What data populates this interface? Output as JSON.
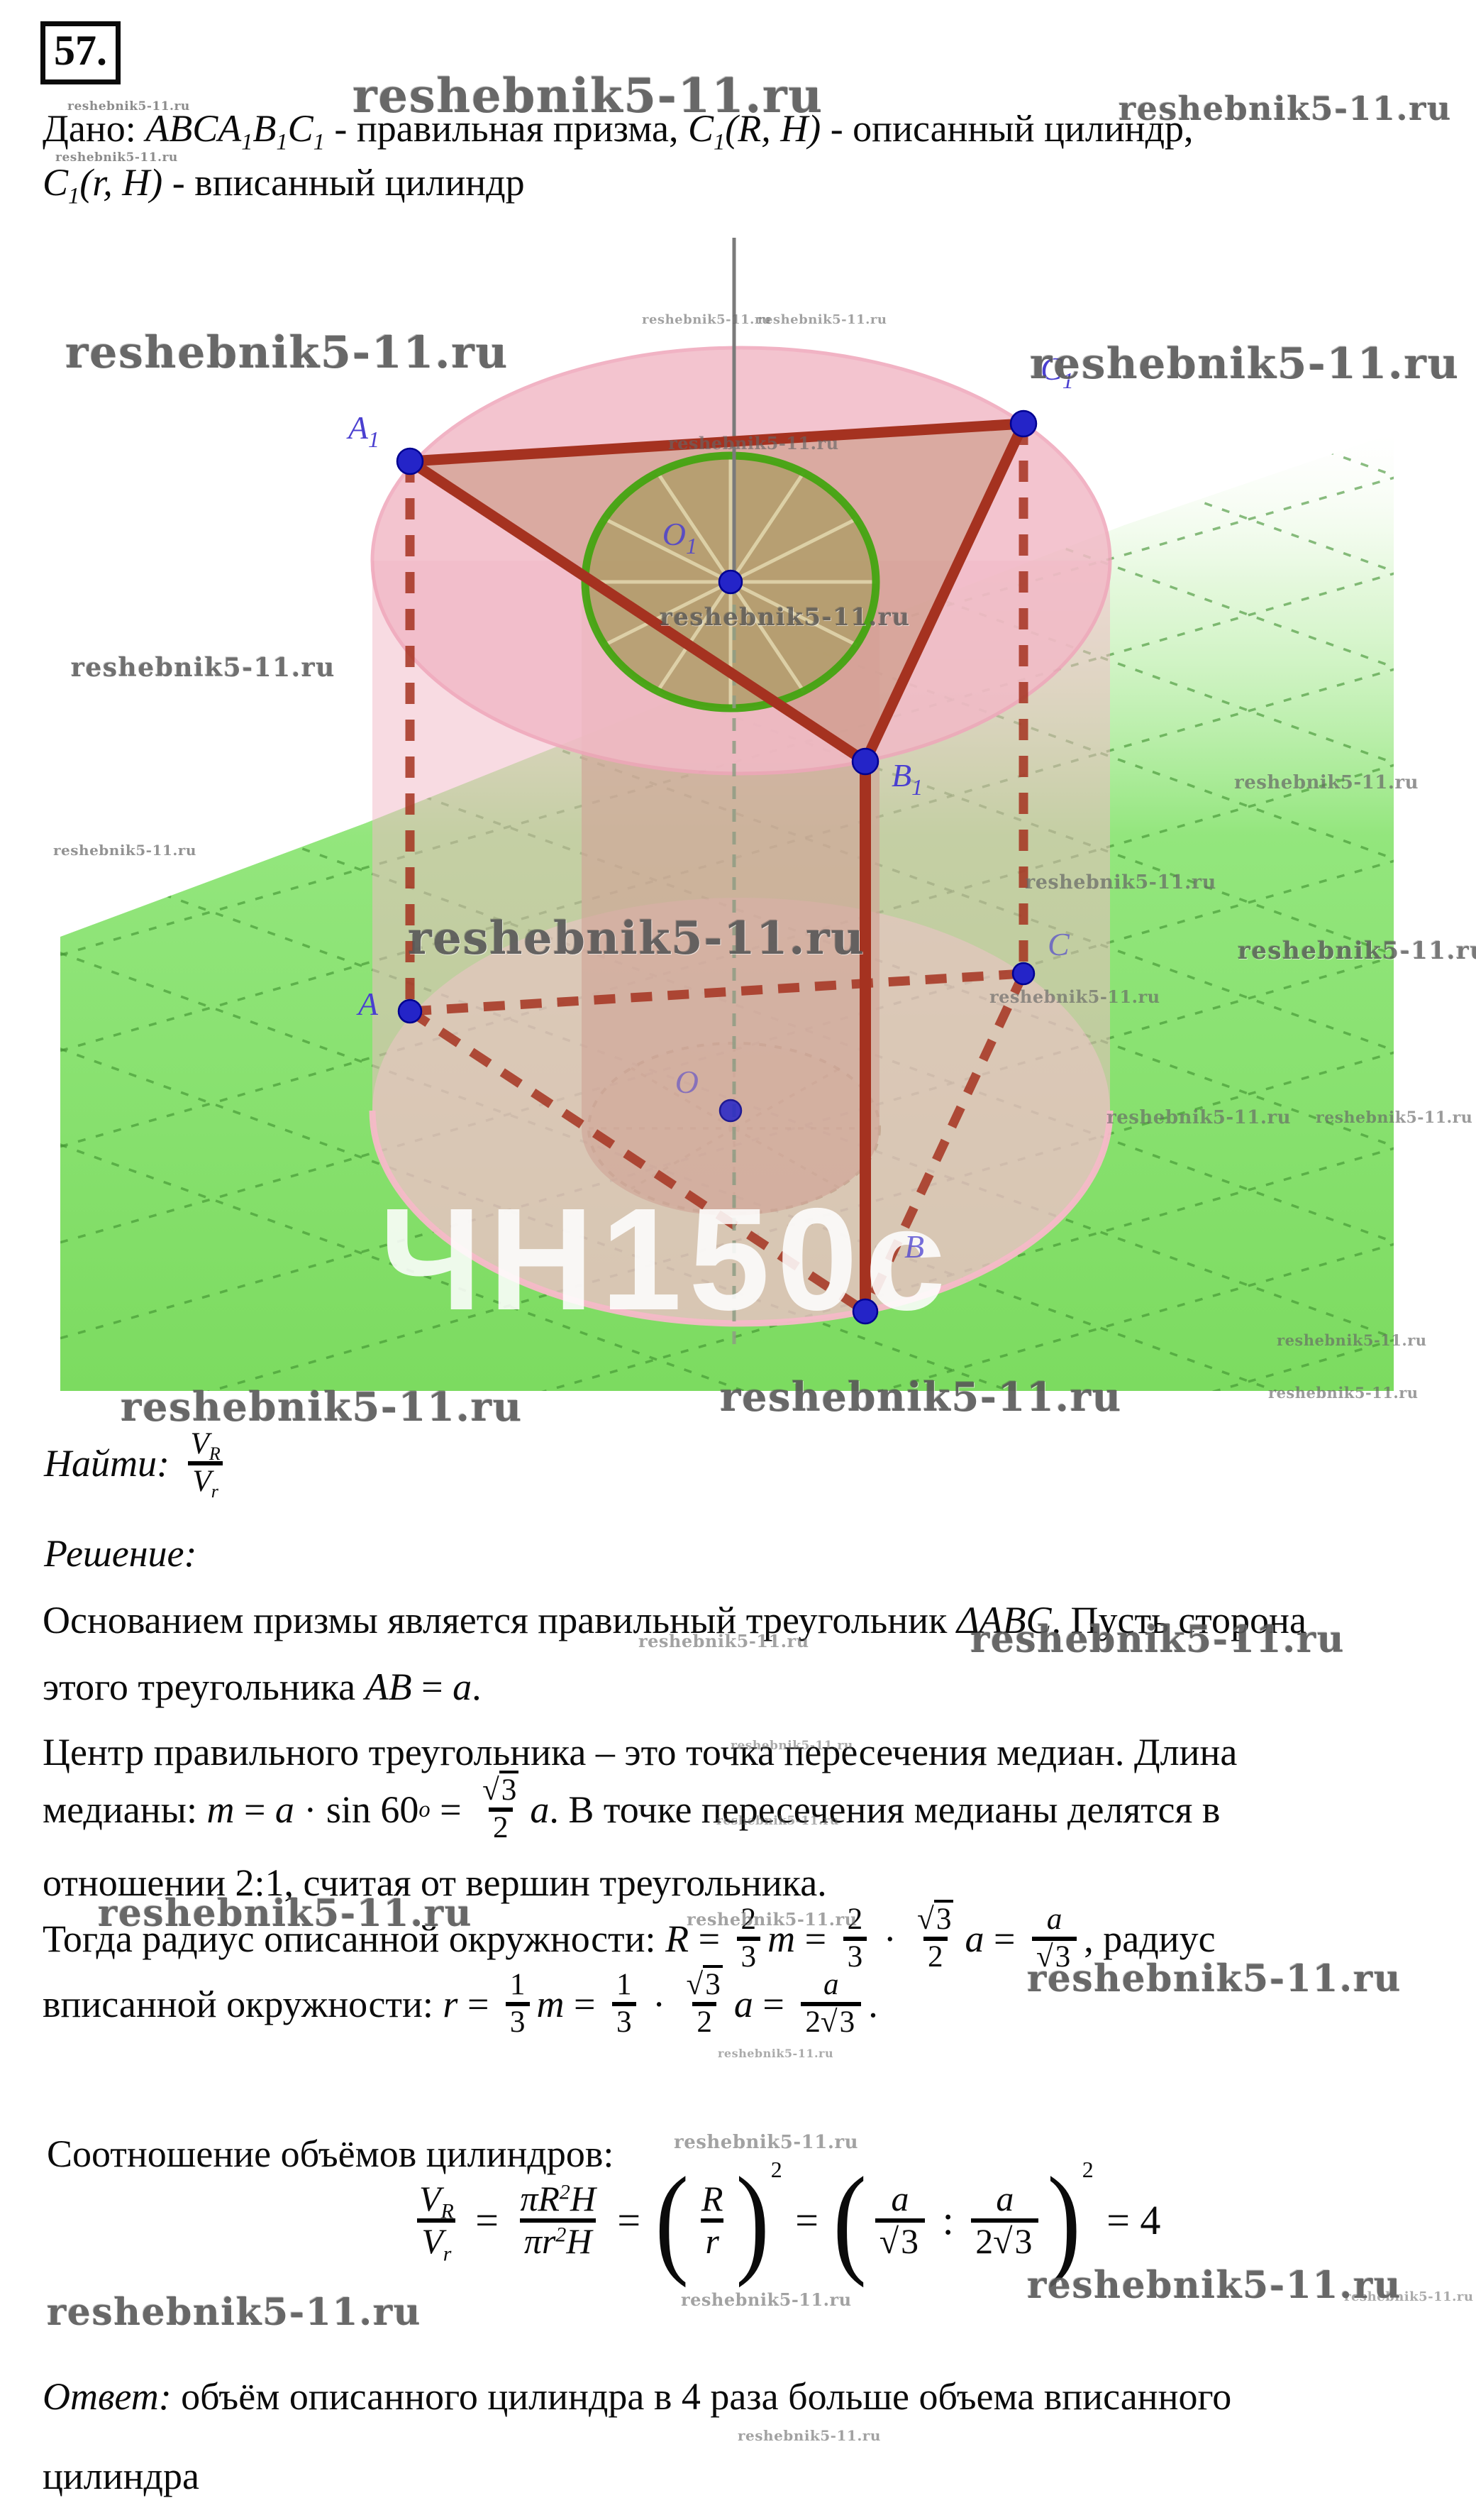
{
  "problem_number": "57.",
  "site": "reshebnik5-11.ru",
  "colors": {
    "floor_green": "#82dd66",
    "grid_green": "#3e8f2e",
    "cyl_pink": "#f2bac7",
    "cyl_pink_edge": "#efa6ba",
    "inner_tan": "#ab9166",
    "top_tan": "#b29d6b",
    "edge_red": "#a53220",
    "circle_green": "#43a411",
    "point_blue": "#2424c8",
    "label_blue": "#4a3fd0",
    "axis_gray": "#7a7a7a",
    "text_black": "#0b0b0b"
  },
  "math": {
    "given1": [
      [
        "t",
        "Дано: "
      ],
      [
        "i",
        "ABCA"
      ],
      [
        "sub",
        "1"
      ],
      [
        "i",
        "B"
      ],
      [
        "sub",
        "1"
      ],
      [
        "i",
        "C"
      ],
      [
        "sub",
        "1"
      ],
      [
        "t",
        " - правильная призма, "
      ],
      [
        "i",
        "C"
      ],
      [
        "sub",
        "1"
      ],
      [
        "i",
        "(R, H)"
      ],
      [
        "t",
        " - описанный цилиндр,"
      ]
    ],
    "given2": [
      [
        "i",
        "C"
      ],
      [
        "sub",
        "1"
      ],
      [
        "i",
        "(r, H)"
      ],
      [
        "t",
        " - вписанный цилиндр"
      ]
    ],
    "find": [
      [
        "i",
        "Найти: "
      ],
      [
        "frac",
        [
          [
            "i",
            "V"
          ],
          [
            "sub",
            "R"
          ]
        ],
        [
          [
            "i",
            "V"
          ],
          [
            "sub",
            "r"
          ]
        ]
      ]
    ],
    "sol_head": [
      [
        "i",
        "Решение:"
      ]
    ],
    "p1a": [
      [
        "t",
        "Основанием призмы является правильный треугольник "
      ],
      [
        "i",
        "ΔABC"
      ],
      [
        "t",
        ". Пусть сторона"
      ]
    ],
    "p1b": [
      [
        "t",
        "этого треугольника "
      ],
      [
        "i",
        "AB"
      ],
      [
        "t",
        " = "
      ],
      [
        "i",
        "a"
      ],
      [
        "t",
        "."
      ]
    ],
    "p2a": [
      [
        "t",
        "Центр правильного треугольника – это точка пересечения медиан. Длина"
      ]
    ],
    "p2b": [
      [
        "t",
        "медианы: "
      ],
      [
        "i",
        "m"
      ],
      [
        "t",
        " = "
      ],
      [
        "i",
        "a"
      ],
      [
        "t",
        " · sin 60"
      ],
      [
        "sup",
        "o"
      ],
      [
        "t",
        " = "
      ],
      [
        "frac",
        [
          [
            "sq",
            "3"
          ]
        ],
        [
          [
            "t",
            "2"
          ]
        ]
      ],
      [
        "i",
        "a"
      ],
      [
        "t",
        ". В точке пересечения медианы делятся в"
      ]
    ],
    "p2c": [
      [
        "t",
        "отношении 2:1, считая от вершин треугольника."
      ]
    ],
    "p3a": [
      [
        "t",
        "Тогда радиус описанной окружности: "
      ],
      [
        "i",
        "R"
      ],
      [
        "t",
        " = "
      ],
      [
        "frac",
        [
          [
            "t",
            "2"
          ]
        ],
        [
          [
            "t",
            "3"
          ]
        ]
      ],
      [
        "i",
        "m"
      ],
      [
        "t",
        " = "
      ],
      [
        "frac",
        [
          [
            "t",
            "2"
          ]
        ],
        [
          [
            "t",
            "3"
          ]
        ]
      ],
      [
        "t",
        " · "
      ],
      [
        "frac",
        [
          [
            "sq",
            "3"
          ]
        ],
        [
          [
            "t",
            "2"
          ]
        ]
      ],
      [
        "i",
        "a"
      ],
      [
        "t",
        " = "
      ],
      [
        "frac",
        [
          [
            "i",
            "a"
          ]
        ],
        [
          [
            "sq",
            "3"
          ]
        ]
      ],
      [
        "t",
        ", радиус"
      ]
    ],
    "p3b": [
      [
        "t",
        "вписанной окружности: "
      ],
      [
        "i",
        "r"
      ],
      [
        "t",
        " = "
      ],
      [
        "frac",
        [
          [
            "t",
            "1"
          ]
        ],
        [
          [
            "t",
            "3"
          ]
        ]
      ],
      [
        "i",
        "m"
      ],
      [
        "t",
        " = "
      ],
      [
        "frac",
        [
          [
            "t",
            "1"
          ]
        ],
        [
          [
            "t",
            "3"
          ]
        ]
      ],
      [
        "t",
        " · "
      ],
      [
        "frac",
        [
          [
            "sq",
            "3"
          ]
        ],
        [
          [
            "t",
            "2"
          ]
        ]
      ],
      [
        "i",
        "a"
      ],
      [
        "t",
        " = "
      ],
      [
        "frac",
        [
          [
            "i",
            "a"
          ]
        ],
        [
          [
            "t",
            "2"
          ],
          [
            "sq",
            "3"
          ]
        ]
      ],
      [
        "t",
        "."
      ]
    ],
    "vol_head": [
      [
        "t",
        "Соотношение объёмов цилиндров:"
      ]
    ],
    "vol": [
      [
        "frac",
        [
          [
            "i",
            "V"
          ],
          [
            "sub",
            "R"
          ]
        ],
        [
          [
            "i",
            "V"
          ],
          [
            "sub",
            "r"
          ]
        ]
      ],
      [
        "t",
        " = "
      ],
      [
        "frac",
        [
          [
            "i",
            "πR"
          ],
          [
            "sup",
            "2"
          ],
          [
            "i",
            "H"
          ]
        ],
        [
          [
            "i",
            "πr"
          ],
          [
            "sup",
            "2"
          ],
          [
            "i",
            "H"
          ]
        ]
      ],
      [
        "t",
        " = "
      ],
      [
        "paren",
        [
          [
            "frac",
            [
              [
                "i",
                "R"
              ]
            ],
            [
              [
                "i",
                "r"
              ]
            ]
          ]
        ],
        "2"
      ],
      [
        "t",
        " = "
      ],
      [
        "paren",
        [
          [
            "frac",
            [
              [
                "i",
                "a"
              ]
            ],
            [
              [
                "sq",
                "3"
              ]
            ]
          ],
          [
            "t",
            " : "
          ],
          [
            "frac",
            [
              [
                "i",
                "a"
              ]
            ],
            [
              [
                "t",
                "2"
              ],
              [
                "sq",
                "3"
              ]
            ]
          ]
        ],
        "2"
      ],
      [
        "t",
        " = 4"
      ]
    ],
    "ans1": [
      [
        "i",
        "Ответ: "
      ],
      [
        "t",
        "объём описанного цилиндра в 4 раза больше объема вписанного"
      ]
    ],
    "ans2": [
      [
        "t",
        "цилиндра"
      ]
    ]
  },
  "figure": {
    "labels": {
      "A1": [
        "A",
        "1"
      ],
      "B1": [
        "B",
        "1"
      ],
      "C1": [
        "C",
        "1"
      ],
      "O1": [
        "O",
        "1"
      ],
      "A": "A",
      "B": "B",
      "C": "C",
      "O": "O"
    },
    "ghost_text": "ЧН150с"
  },
  "watermarks": {
    "text": "reshebnik5-11.ru",
    "items": [
      [
        95,
        140,
        17,
        0.75,
        0
      ],
      [
        78,
        212,
        17,
        0.75,
        0
      ],
      [
        497,
        96,
        66,
        0.9,
        1
      ],
      [
        1577,
        126,
        46,
        0.9,
        1
      ],
      [
        92,
        460,
        62,
        0.9,
        1
      ],
      [
        1452,
        478,
        60,
        0.9,
        1
      ],
      [
        100,
        920,
        36,
        0.85,
        1
      ],
      [
        75,
        1186,
        20,
        0.7,
        0
      ],
      [
        905,
        440,
        18,
        0.6,
        0
      ],
      [
        1068,
        440,
        18,
        0.6,
        0
      ],
      [
        942,
        610,
        24,
        0.65,
        0
      ],
      [
        930,
        850,
        34,
        0.8,
        1
      ],
      [
        575,
        1285,
        64,
        0.9,
        1
      ],
      [
        1740,
        1088,
        26,
        0.7,
        0
      ],
      [
        1445,
        1228,
        27,
        0.7,
        0
      ],
      [
        1745,
        1320,
        34,
        0.8,
        1
      ],
      [
        1395,
        1390,
        24,
        0.65,
        0
      ],
      [
        1560,
        1560,
        26,
        0.65,
        0
      ],
      [
        1855,
        1562,
        22,
        0.65,
        0
      ],
      [
        1800,
        1876,
        21,
        0.65,
        0
      ],
      [
        170,
        1950,
        56,
        0.9,
        1
      ],
      [
        1015,
        1936,
        56,
        0.9,
        1
      ],
      [
        1788,
        1950,
        21,
        0.65,
        0
      ],
      [
        900,
        2298,
        24,
        0.6,
        0
      ],
      [
        1368,
        2280,
        52,
        0.9,
        1
      ],
      [
        1030,
        2450,
        17,
        0.55,
        0
      ],
      [
        1010,
        2556,
        17,
        0.55,
        0
      ],
      [
        138,
        2666,
        52,
        0.9,
        1
      ],
      [
        968,
        2690,
        24,
        0.6,
        0
      ],
      [
        1448,
        2758,
        52,
        0.9,
        1
      ],
      [
        1012,
        2884,
        16,
        0.55,
        0
      ],
      [
        950,
        3004,
        26,
        0.6,
        0
      ],
      [
        66,
        3228,
        52,
        0.9,
        1
      ],
      [
        960,
        3226,
        24,
        0.6,
        0
      ],
      [
        1448,
        3190,
        52,
        0.9,
        1
      ],
      [
        1895,
        3226,
        18,
        0.55,
        0
      ],
      [
        1040,
        3420,
        20,
        0.6,
        0
      ]
    ]
  }
}
